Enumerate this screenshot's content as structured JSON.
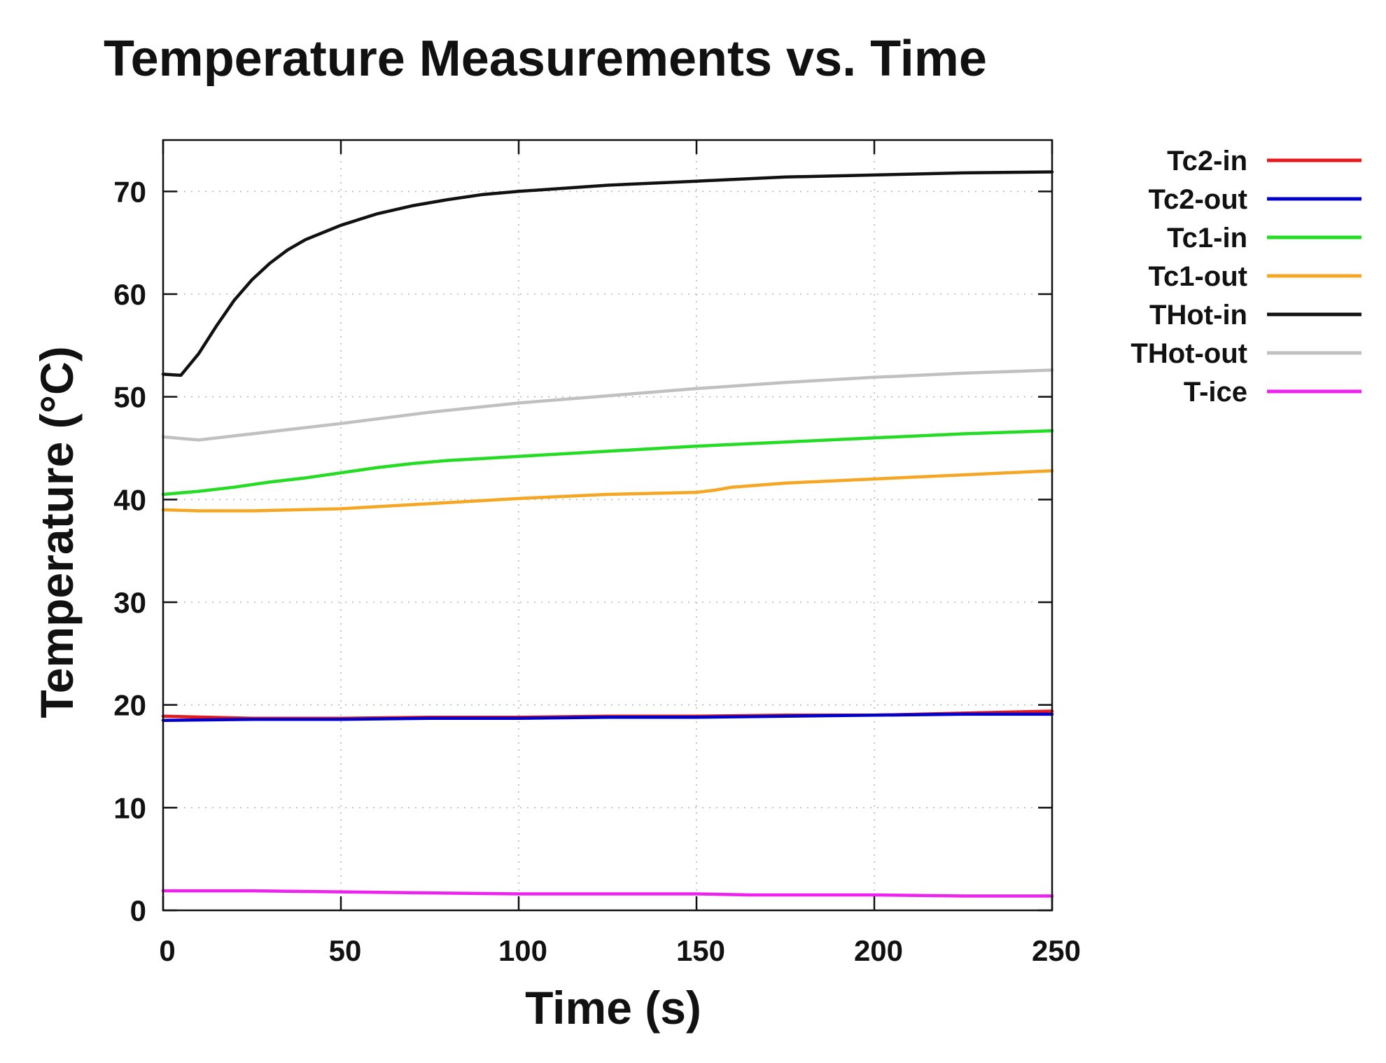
{
  "chart_data": {
    "type": "line",
    "title": "Temperature Measurements vs. Time",
    "xlabel": "Time (s)",
    "ylabel": "Temperature (°C)",
    "xlim": [
      0,
      250
    ],
    "ylim": [
      0,
      75
    ],
    "xticks": [
      0,
      50,
      100,
      150,
      200,
      250
    ],
    "yticks": [
      0,
      10,
      20,
      30,
      40,
      50,
      60,
      70
    ],
    "grid": true,
    "legend_position": "outside-right",
    "series": [
      {
        "name": "Tc2-in",
        "color": "#e41a1c",
        "x": [
          0,
          25,
          50,
          75,
          100,
          125,
          150,
          175,
          200,
          225,
          250
        ],
        "y": [
          18.9,
          18.7,
          18.7,
          18.8,
          18.8,
          18.9,
          18.9,
          19.0,
          19.0,
          19.2,
          19.4
        ]
      },
      {
        "name": "Tc2-out",
        "color": "#0000cc",
        "x": [
          0,
          25,
          50,
          75,
          100,
          125,
          150,
          175,
          200,
          225,
          250
        ],
        "y": [
          18.5,
          18.6,
          18.6,
          18.7,
          18.7,
          18.8,
          18.8,
          18.9,
          19.0,
          19.1,
          19.1
        ]
      },
      {
        "name": "Tc1-in",
        "color": "#22dd22",
        "x": [
          0,
          10,
          20,
          30,
          40,
          50,
          60,
          70,
          80,
          90,
          100,
          125,
          150,
          175,
          200,
          225,
          250
        ],
        "y": [
          40.5,
          40.8,
          41.2,
          41.7,
          42.1,
          42.6,
          43.1,
          43.5,
          43.8,
          44.0,
          44.2,
          44.7,
          45.2,
          45.6,
          46.0,
          46.4,
          46.7
        ]
      },
      {
        "name": "Tc1-out",
        "color": "#f5a623",
        "x": [
          0,
          10,
          25,
          50,
          75,
          100,
          125,
          150,
          155,
          160,
          175,
          200,
          225,
          250
        ],
        "y": [
          39.0,
          38.9,
          38.9,
          39.1,
          39.6,
          40.1,
          40.5,
          40.7,
          40.9,
          41.2,
          41.6,
          42.0,
          42.4,
          42.8
        ]
      },
      {
        "name": "THot-in",
        "color": "#111111",
        "x": [
          0,
          5,
          10,
          15,
          20,
          25,
          30,
          35,
          40,
          45,
          50,
          60,
          70,
          80,
          90,
          100,
          125,
          150,
          175,
          200,
          225,
          250
        ],
        "y": [
          52.2,
          52.1,
          54.2,
          56.9,
          59.4,
          61.4,
          63.0,
          64.3,
          65.3,
          66.0,
          66.7,
          67.8,
          68.6,
          69.2,
          69.7,
          70.0,
          70.6,
          71.0,
          71.4,
          71.6,
          71.8,
          71.9
        ]
      },
      {
        "name": "THot-out",
        "color": "#c0c0c0",
        "x": [
          0,
          10,
          25,
          50,
          75,
          100,
          125,
          150,
          175,
          200,
          225,
          250
        ],
        "y": [
          46.1,
          45.8,
          46.4,
          47.4,
          48.5,
          49.4,
          50.1,
          50.8,
          51.4,
          51.9,
          52.3,
          52.6
        ]
      },
      {
        "name": "T-ice",
        "color": "#ee22ee",
        "x": [
          0,
          25,
          50,
          75,
          100,
          125,
          150,
          165,
          175,
          200,
          225,
          250
        ],
        "y": [
          1.9,
          1.9,
          1.8,
          1.7,
          1.6,
          1.6,
          1.6,
          1.5,
          1.5,
          1.5,
          1.4,
          1.4
        ]
      }
    ]
  }
}
